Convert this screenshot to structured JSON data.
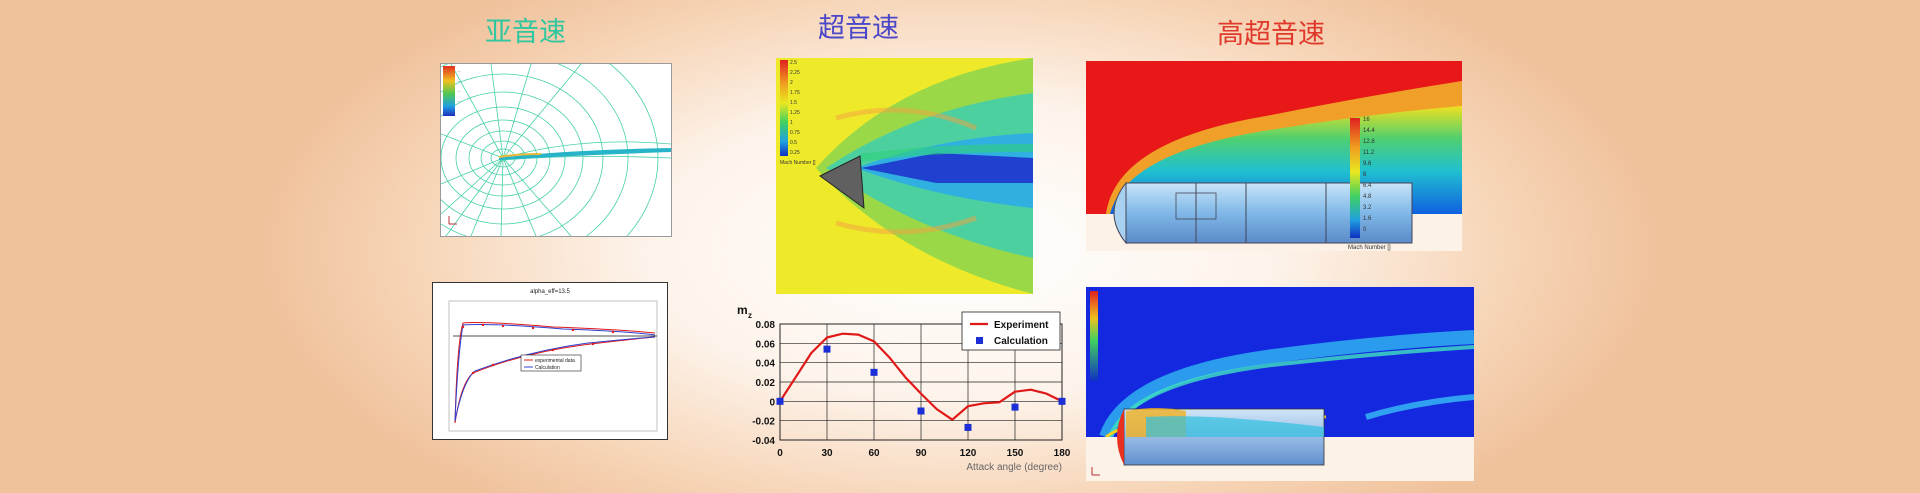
{
  "titles": {
    "subsonic": "亚音速",
    "supersonic": "超音速",
    "hypersonic": "高超音速"
  },
  "colors": {
    "subsonic_title": "#2fc7a0",
    "supersonic_title": "#4a47c8",
    "hypersonic_title": "#e0392b",
    "curve": "#e01818",
    "points": "#1a2fd6"
  },
  "cone_contour": {
    "colorbar_labels": [
      "2.5",
      "2.25",
      "2",
      "1.75",
      "1.5",
      "1.25",
      "1",
      "0.75",
      "0.5",
      "0.25"
    ],
    "colorbar_title": "Mach Number []"
  },
  "hyper_contour": {
    "colorbar_labels": [
      "16",
      "14.4",
      "12.8",
      "11.2",
      "9.6",
      "8",
      "6.4",
      "4.8",
      "3.2",
      "1.6",
      "0"
    ],
    "colorbar_title": "Mach Number []"
  },
  "small_plot": {
    "title": "alpha_eff=13.5",
    "legend": [
      "experimental data",
      "Calculation"
    ]
  },
  "chart_data": {
    "type": "line",
    "ylabel": "m",
    "ylabel_sub": "z",
    "xlabel": "Attack angle (degree)",
    "x_ticks": [
      0,
      30,
      60,
      90,
      120,
      150,
      180
    ],
    "y_ticks": [
      "0.08",
      "0.06",
      "0.04",
      "0.02",
      "0",
      "-0.02",
      "-0.04"
    ],
    "xlim": [
      0,
      180
    ],
    "ylim": [
      -0.04,
      0.08
    ],
    "series": [
      {
        "name": "Experiment",
        "kind": "line",
        "x": [
          0,
          10,
          20,
          30,
          40,
          50,
          60,
          70,
          80,
          90,
          100,
          110,
          120,
          130,
          140,
          150,
          160,
          170,
          180
        ],
        "y": [
          0.0,
          0.025,
          0.05,
          0.066,
          0.07,
          0.069,
          0.062,
          0.045,
          0.025,
          0.008,
          -0.008,
          -0.019,
          -0.005,
          -0.002,
          -0.001,
          0.01,
          0.012,
          0.008,
          0.0
        ]
      },
      {
        "name": "Calculation",
        "kind": "scatter",
        "x": [
          0,
          30,
          60,
          90,
          120,
          150,
          180
        ],
        "y": [
          0.0,
          0.054,
          0.03,
          -0.01,
          -0.027,
          -0.006,
          0.0
        ]
      }
    ],
    "legend_position": "top-right",
    "grid": true
  }
}
